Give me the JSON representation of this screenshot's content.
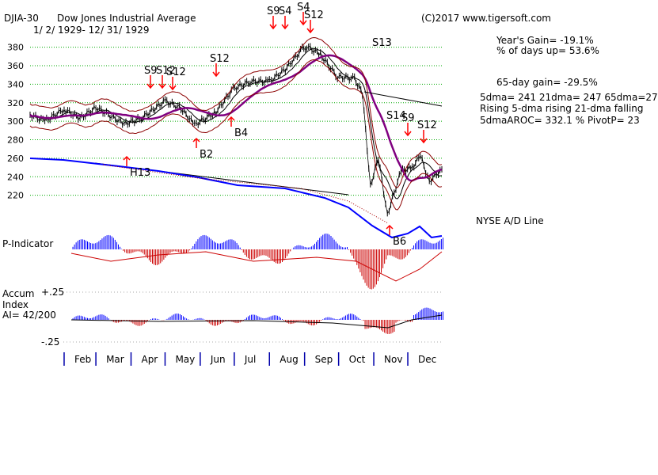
{
  "header": {
    "symbol": "DJIA-30",
    "name": "Dow Jones Industrial Average",
    "date_range": "1/ 2/ 1929- 12/ 31/ 1929",
    "copyright": "(C)2017 www.tigersoft.com"
  },
  "stats": {
    "years_gain": "Year's Gain= -19.1%",
    "pct_days_up": "% of days up= 53.6%",
    "gain_65": "65-day gain= -29.5%",
    "dma_line": "5dma= 241 21dma= 247 65dma=27",
    "rising_line": "Rising 5-dma rising 21-dma falling",
    "aroc_line": "5dmaAROC= 332.1 %  PivotP= 23"
  },
  "panels": {
    "ad_line_label": "NYSE A/D Line",
    "p_indicator_label": "P-Indicator",
    "accum_label_1": "Accum",
    "accum_label_2": "Index",
    "accum_ai": "AI= 42/200",
    "accum_plus": "+.25",
    "accum_minus": "-.25"
  },
  "colors": {
    "price": "#000000",
    "grid": "#00aa00",
    "ad_line": "#0000ff",
    "ma_65": "#800080",
    "band": "#8b0000",
    "signal_sell": "#ff0000",
    "positive": "#0000ff",
    "negative": "#cc0000"
  },
  "chart_data": {
    "type": "line",
    "title": "Dow Jones Industrial Average",
    "ylim": [
      200,
      390
    ],
    "yticks": [
      220,
      240,
      260,
      280,
      300,
      320,
      340,
      360,
      380
    ],
    "grid": true,
    "xticks": [
      "Feb",
      "Mar",
      "Apr",
      "May",
      "Jun",
      "Jul",
      "Aug",
      "Sep",
      "Oct",
      "Nov",
      "Dec"
    ],
    "series": [
      {
        "name": "DJIA-30",
        "values": [
          {
            "date": "Jan 02",
            "y": 307
          },
          {
            "date": "Jan 15",
            "y": 300
          },
          {
            "date": "Feb 01",
            "y": 313
          },
          {
            "date": "Feb 15",
            "y": 303
          },
          {
            "date": "Mar 01",
            "y": 315
          },
          {
            "date": "Mar 26",
            "y": 297
          },
          {
            "date": "Apr 10",
            "y": 303
          },
          {
            "date": "May 01",
            "y": 322
          },
          {
            "date": "May 15",
            "y": 314
          },
          {
            "date": "May 27",
            "y": 296
          },
          {
            "date": "Jun 15",
            "y": 310
          },
          {
            "date": "Jun 30",
            "y": 335
          },
          {
            "date": "Jul 15",
            "y": 343
          },
          {
            "date": "Aug 01",
            "y": 343
          },
          {
            "date": "Aug 15",
            "y": 356
          },
          {
            "date": "Aug 30",
            "y": 378
          },
          {
            "date": "Sep 03",
            "y": 381
          },
          {
            "date": "Sep 15",
            "y": 372
          },
          {
            "date": "Sep 30",
            "y": 348
          },
          {
            "date": "Oct 15",
            "y": 346
          },
          {
            "date": "Oct 22",
            "y": 330
          },
          {
            "date": "Oct 29",
            "y": 230
          },
          {
            "date": "Nov 05",
            "y": 260
          },
          {
            "date": "Nov 13",
            "y": 199
          },
          {
            "date": "Nov 25",
            "y": 246
          },
          {
            "date": "Dec 05",
            "y": 250
          },
          {
            "date": "Dec 12",
            "y": 263
          },
          {
            "date": "Dec 20",
            "y": 235
          },
          {
            "date": "Dec 31",
            "y": 248
          }
        ]
      }
    ],
    "annotations": [
      "S9",
      "S4",
      "S12",
      "S9",
      "S12",
      "S9",
      "S12",
      "S9",
      "S4",
      "S9",
      "S4",
      "S9",
      "S12",
      "S13",
      "S14",
      "S9",
      "S12",
      "B2",
      "B4",
      "B6",
      "H13"
    ]
  }
}
